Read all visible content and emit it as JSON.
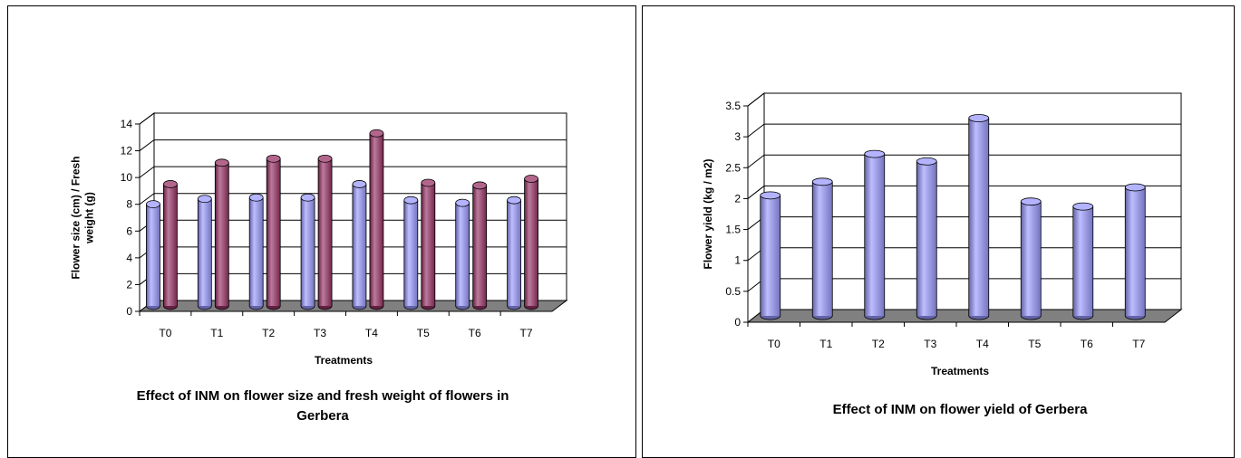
{
  "chart_data": [
    {
      "type": "bar",
      "categories": [
        "T0",
        "T1",
        "T2",
        "T3",
        "T4",
        "T5",
        "T6",
        "T7"
      ],
      "series": [
        {
          "values": [
            7.6,
            8.0,
            8.1,
            8.1,
            9.1,
            7.9,
            7.7,
            7.9
          ],
          "color": "#9999FF"
        },
        {
          "values": [
            9.1,
            10.7,
            11.0,
            11.0,
            12.9,
            9.2,
            9.0,
            9.5
          ],
          "color": "#993366"
        }
      ],
      "xlabel": "Treatments",
      "ylabel": "Flower size (cm) / Fresh weight (g)",
      "ylabel_lines": [
        "Flower size (cm) / Fresh",
        "weight (g)"
      ],
      "yticks": [
        "0",
        "2",
        "4",
        "6",
        "8",
        "10",
        "12",
        "14"
      ],
      "ylim": [
        0,
        14
      ],
      "grid": true,
      "caption_lines": [
        "Effect of INM on flower size and fresh weight of flowers in",
        "Gerbera"
      ]
    },
    {
      "type": "bar",
      "categories": [
        "T0",
        "T1",
        "T2",
        "T3",
        "T4",
        "T5",
        "T6",
        "T7"
      ],
      "series": [
        {
          "values": [
            1.95,
            2.17,
            2.62,
            2.5,
            3.2,
            1.85,
            1.77,
            2.08
          ],
          "color": "#9999FF"
        }
      ],
      "xlabel": "Treatments",
      "ylabel": "Flower yield (kg / m2)",
      "ylabel_lines": [
        "Flower yield (kg / m2)"
      ],
      "yticks": [
        "0",
        "0.5",
        "1",
        "1.5",
        "2",
        "2.5",
        "3",
        "3.5"
      ],
      "ylim": [
        0,
        3.5
      ],
      "grid": true,
      "caption_lines": [
        "Effect of INM on flower yield of Gerbera"
      ]
    }
  ]
}
